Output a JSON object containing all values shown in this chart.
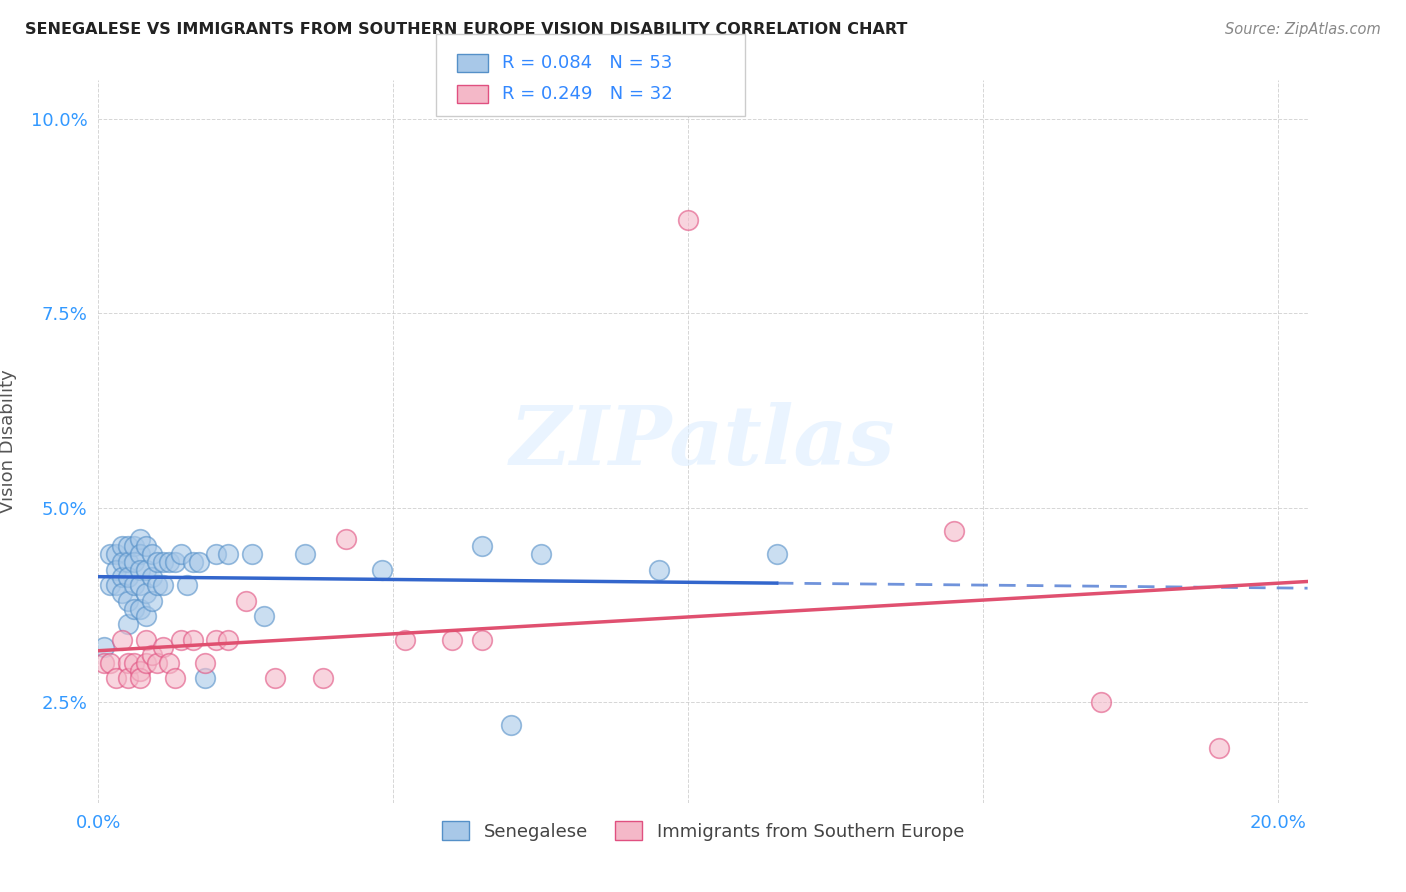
{
  "title": "SENEGALESE VS IMMIGRANTS FROM SOUTHERN EUROPE VISION DISABILITY CORRELATION CHART",
  "source": "Source: ZipAtlas.com",
  "ylabel": "Vision Disability",
  "watermark_text": "ZIPatlas",
  "R1": 0.084,
  "N1": 53,
  "R2": 0.249,
  "N2": 32,
  "legend_label1": "Senegalese",
  "legend_label2": "Immigrants from Southern Europe",
  "color1": "#a8c8e8",
  "color2": "#f4b8c8",
  "edge1": "#5590c8",
  "edge2": "#e05080",
  "line1_color": "#3366cc",
  "line2_color": "#e05070",
  "xlim": [
    0.0,
    0.205
  ],
  "ylim": [
    0.012,
    0.105
  ],
  "xticks": [
    0.0,
    0.05,
    0.1,
    0.15,
    0.2
  ],
  "xtick_labels": [
    "0.0%",
    "",
    "",
    "",
    "20.0%"
  ],
  "yticks": [
    0.025,
    0.05,
    0.075,
    0.1
  ],
  "ytick_labels": [
    "2.5%",
    "5.0%",
    "7.5%",
    "10.0%"
  ],
  "senegalese_x": [
    0.001,
    0.002,
    0.002,
    0.003,
    0.003,
    0.003,
    0.004,
    0.004,
    0.004,
    0.004,
    0.005,
    0.005,
    0.005,
    0.005,
    0.005,
    0.006,
    0.006,
    0.006,
    0.006,
    0.007,
    0.007,
    0.007,
    0.007,
    0.007,
    0.008,
    0.008,
    0.008,
    0.008,
    0.009,
    0.009,
    0.009,
    0.01,
    0.01,
    0.011,
    0.011,
    0.012,
    0.013,
    0.014,
    0.015,
    0.016,
    0.017,
    0.018,
    0.02,
    0.022,
    0.026,
    0.028,
    0.035,
    0.048,
    0.065,
    0.07,
    0.075,
    0.095,
    0.115
  ],
  "senegalese_y": [
    0.032,
    0.044,
    0.04,
    0.044,
    0.042,
    0.04,
    0.045,
    0.043,
    0.041,
    0.039,
    0.045,
    0.043,
    0.041,
    0.038,
    0.035,
    0.045,
    0.043,
    0.04,
    0.037,
    0.046,
    0.044,
    0.042,
    0.04,
    0.037,
    0.045,
    0.042,
    0.039,
    0.036,
    0.044,
    0.041,
    0.038,
    0.043,
    0.04,
    0.043,
    0.04,
    0.043,
    0.043,
    0.044,
    0.04,
    0.043,
    0.043,
    0.028,
    0.044,
    0.044,
    0.044,
    0.036,
    0.044,
    0.042,
    0.045,
    0.022,
    0.044,
    0.042,
    0.044
  ],
  "immigrants_x": [
    0.001,
    0.002,
    0.003,
    0.004,
    0.005,
    0.005,
    0.006,
    0.007,
    0.007,
    0.008,
    0.008,
    0.009,
    0.01,
    0.011,
    0.012,
    0.013,
    0.014,
    0.016,
    0.018,
    0.02,
    0.022,
    0.025,
    0.03,
    0.038,
    0.042,
    0.052,
    0.06,
    0.065,
    0.1,
    0.145,
    0.17,
    0.19
  ],
  "immigrants_y": [
    0.03,
    0.03,
    0.028,
    0.033,
    0.03,
    0.028,
    0.03,
    0.029,
    0.028,
    0.033,
    0.03,
    0.031,
    0.03,
    0.032,
    0.03,
    0.028,
    0.033,
    0.033,
    0.03,
    0.033,
    0.033,
    0.038,
    0.028,
    0.028,
    0.046,
    0.033,
    0.033,
    0.033,
    0.087,
    0.047,
    0.025,
    0.019
  ]
}
